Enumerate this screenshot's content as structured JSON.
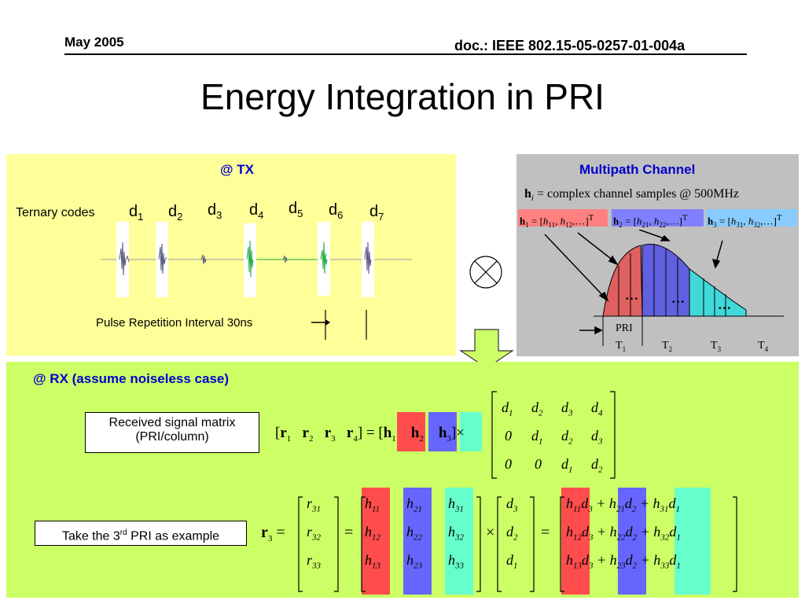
{
  "header": {
    "date": "May 2005",
    "doc_id": "doc.: IEEE 802.15-05-0257-01-004a"
  },
  "title": "Energy Integration in PRI",
  "tx": {
    "heading": "@ TX",
    "codes_label": "Ternary codes",
    "symbols": [
      "d",
      "d",
      "d",
      "d",
      "d",
      "d",
      "d"
    ],
    "subscripts": [
      "1",
      "2",
      "3",
      "4",
      "5",
      "6",
      "7"
    ],
    "pri_label": "Pulse Repetition Interval 30ns"
  },
  "channel": {
    "heading": "Multipath Channel",
    "definition": "= complex channel samples @ 500MHz",
    "pri_label": "PRI",
    "t_labels": [
      "T",
      "T",
      "T",
      "T"
    ],
    "t_subs": [
      "1",
      "2",
      "3",
      "4"
    ],
    "dots": [
      "…",
      "…",
      "…"
    ],
    "colors": {
      "red": "#e06060",
      "blue": "#6060e0",
      "aqua": "#40d8d8"
    }
  },
  "rx": {
    "heading": "@ RX (assume noiseless case)",
    "box1_line1": "Received signal matrix",
    "box1_line2": "(PRI/column)",
    "box2_text": "Take the 3",
    "box2_sup": "rd",
    "box2_tail": " PRI as example",
    "d_matrix": [
      [
        "d1",
        "d2",
        "d3",
        "d4"
      ],
      [
        "0",
        "d1",
        "d2",
        "d3"
      ],
      [
        "0",
        "0",
        "d1",
        "d2"
      ]
    ],
    "r_vec": [
      "r31",
      "r32",
      "r33"
    ],
    "h_matrix": [
      [
        "h11",
        "h21",
        "h31"
      ],
      [
        "h12",
        "h22",
        "h32"
      ],
      [
        "h13",
        "h23",
        "h33"
      ]
    ],
    "d_vec": [
      "d3",
      "d2",
      "d1"
    ]
  }
}
